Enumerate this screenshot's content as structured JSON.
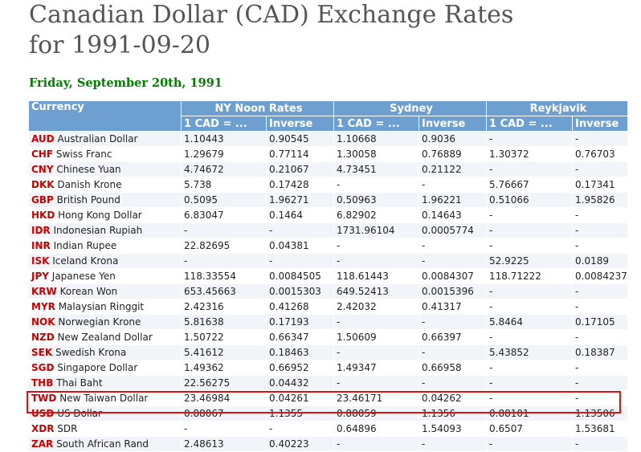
{
  "page": {
    "title_line1": "Canadian Dollar (CAD) Exchange Rates",
    "title_line2": "for 1991-09-20",
    "subtitle": "Friday, September 20th, 1991"
  },
  "table": {
    "currency_header": "Currency",
    "groups": [
      "NY Noon Rates",
      "Sydney",
      "Reykjavik"
    ],
    "sub_headers": [
      "1 CAD = ...",
      "Inverse",
      "1 CAD = ...",
      "Inverse",
      "1 CAD = ...",
      "Inverse"
    ],
    "rows": [
      {
        "code": "AUD",
        "name": "Australian Dollar",
        "v": [
          "1.10443",
          "0.90545",
          "1.10668",
          "0.9036",
          "-",
          "-"
        ]
      },
      {
        "code": "CHF",
        "name": "Swiss Franc",
        "v": [
          "1.29679",
          "0.77114",
          "1.30058",
          "0.76889",
          "1.30372",
          "0.76703"
        ]
      },
      {
        "code": "CNY",
        "name": "Chinese Yuan",
        "v": [
          "4.74672",
          "0.21067",
          "4.73451",
          "0.21122",
          "-",
          "-"
        ]
      },
      {
        "code": "DKK",
        "name": "Danish Krone",
        "v": [
          "5.738",
          "0.17428",
          "-",
          "-",
          "5.76667",
          "0.17341"
        ]
      },
      {
        "code": "GBP",
        "name": "British Pound",
        "v": [
          "0.5095",
          "1.96271",
          "0.50963",
          "1.96221",
          "0.51066",
          "1.95826"
        ]
      },
      {
        "code": "HKD",
        "name": "Hong Kong Dollar",
        "v": [
          "6.83047",
          "0.1464",
          "6.82902",
          "0.14643",
          "-",
          "-"
        ]
      },
      {
        "code": "IDR",
        "name": "Indonesian Rupiah",
        "v": [
          "-",
          "-",
          "1731.96104",
          "0.0005774",
          "-",
          "-"
        ]
      },
      {
        "code": "INR",
        "name": "Indian Rupee",
        "v": [
          "22.82695",
          "0.04381",
          "-",
          "-",
          "-",
          "-"
        ]
      },
      {
        "code": "ISK",
        "name": "Iceland Krona",
        "v": [
          "-",
          "-",
          "-",
          "-",
          "52.9225",
          "0.0189"
        ]
      },
      {
        "code": "JPY",
        "name": "Japanese Yen",
        "v": [
          "118.33554",
          "0.0084505",
          "118.61443",
          "0.0084307",
          "118.71222",
          "0.0084237"
        ]
      },
      {
        "code": "KRW",
        "name": "Korean Won",
        "v": [
          "653.45663",
          "0.0015303",
          "649.52413",
          "0.0015396",
          "-",
          "-"
        ]
      },
      {
        "code": "MYR",
        "name": "Malaysian Ringgit",
        "v": [
          "2.42316",
          "0.41268",
          "2.42032",
          "0.41317",
          "-",
          "-"
        ]
      },
      {
        "code": "NOK",
        "name": "Norwegian Krone",
        "v": [
          "5.81638",
          "0.17193",
          "-",
          "-",
          "5.8464",
          "0.17105"
        ]
      },
      {
        "code": "NZD",
        "name": "New Zealand Dollar",
        "v": [
          "1.50722",
          "0.66347",
          "1.50609",
          "0.66397",
          "-",
          "-"
        ]
      },
      {
        "code": "SEK",
        "name": "Swedish Krona",
        "v": [
          "5.41612",
          "0.18463",
          "-",
          "-",
          "5.43852",
          "0.18387"
        ]
      },
      {
        "code": "SGD",
        "name": "Singapore Dollar",
        "v": [
          "1.49362",
          "0.66952",
          "1.49347",
          "0.66958",
          "-",
          "-"
        ]
      },
      {
        "code": "THB",
        "name": "Thai Baht",
        "v": [
          "22.56275",
          "0.04432",
          "-",
          "-",
          "-",
          "-"
        ]
      },
      {
        "code": "TWD",
        "name": "New Taiwan Dollar",
        "v": [
          "23.46984",
          "0.04261",
          "23.46171",
          "0.04262",
          "-",
          "-"
        ]
      },
      {
        "code": "USD",
        "name": "US Dollar",
        "v": [
          "0.88067",
          "1.1355",
          "0.88059",
          "1.1356",
          "0.88101",
          "1.13506"
        ]
      },
      {
        "code": "XDR",
        "name": "SDR",
        "v": [
          "-",
          "-",
          "0.64896",
          "1.54093",
          "0.6507",
          "1.53681"
        ]
      },
      {
        "code": "ZAR",
        "name": "South African Rand",
        "v": [
          "2.48613",
          "0.40223",
          "-",
          "-",
          "-",
          "-"
        ]
      }
    ]
  },
  "highlight_color": "#dd1111",
  "header_color": "#6d9fd1"
}
